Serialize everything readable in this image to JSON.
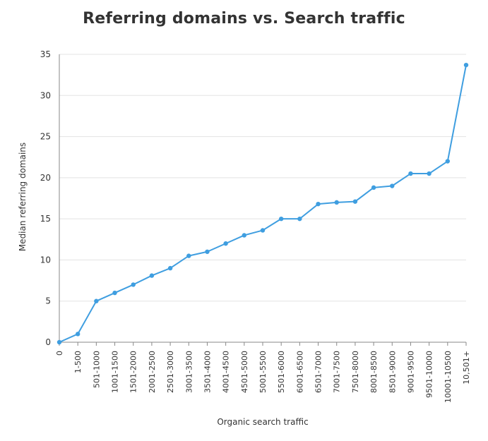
{
  "chart_data": {
    "type": "line",
    "title": "Referring domains vs. Search traffic",
    "xlabel": "Organic search traffic",
    "ylabel": "Median referring domains",
    "categories": [
      "0",
      "1-500",
      "501-1000",
      "1001-1500",
      "1501-2000",
      "2001-2500",
      "2501-3000",
      "3001-3500",
      "3501-4000",
      "4001-4500",
      "4501-5000",
      "5001-5500",
      "5501-6000",
      "6001-6500",
      "6501-7000",
      "7001-7500",
      "7501-8000",
      "8001-8500",
      "8501-9000",
      "9001-9500",
      "9501-10000",
      "10001-10500",
      "10,501+"
    ],
    "values": [
      0,
      1,
      5,
      6,
      7,
      8.1,
      9,
      10.5,
      11,
      12,
      13,
      13.6,
      15,
      15,
      16.8,
      17,
      17.1,
      18.8,
      19,
      20.5,
      20.5,
      22,
      33.7
    ],
    "ylim": [
      0,
      35
    ],
    "yticks": [
      0,
      5,
      10,
      15,
      20,
      25,
      30,
      35
    ],
    "grid": true,
    "line_color": "#3f9ee0",
    "grid_color": "#e3e3e3",
    "axis_color": "#888888",
    "text_color": "#333333"
  }
}
